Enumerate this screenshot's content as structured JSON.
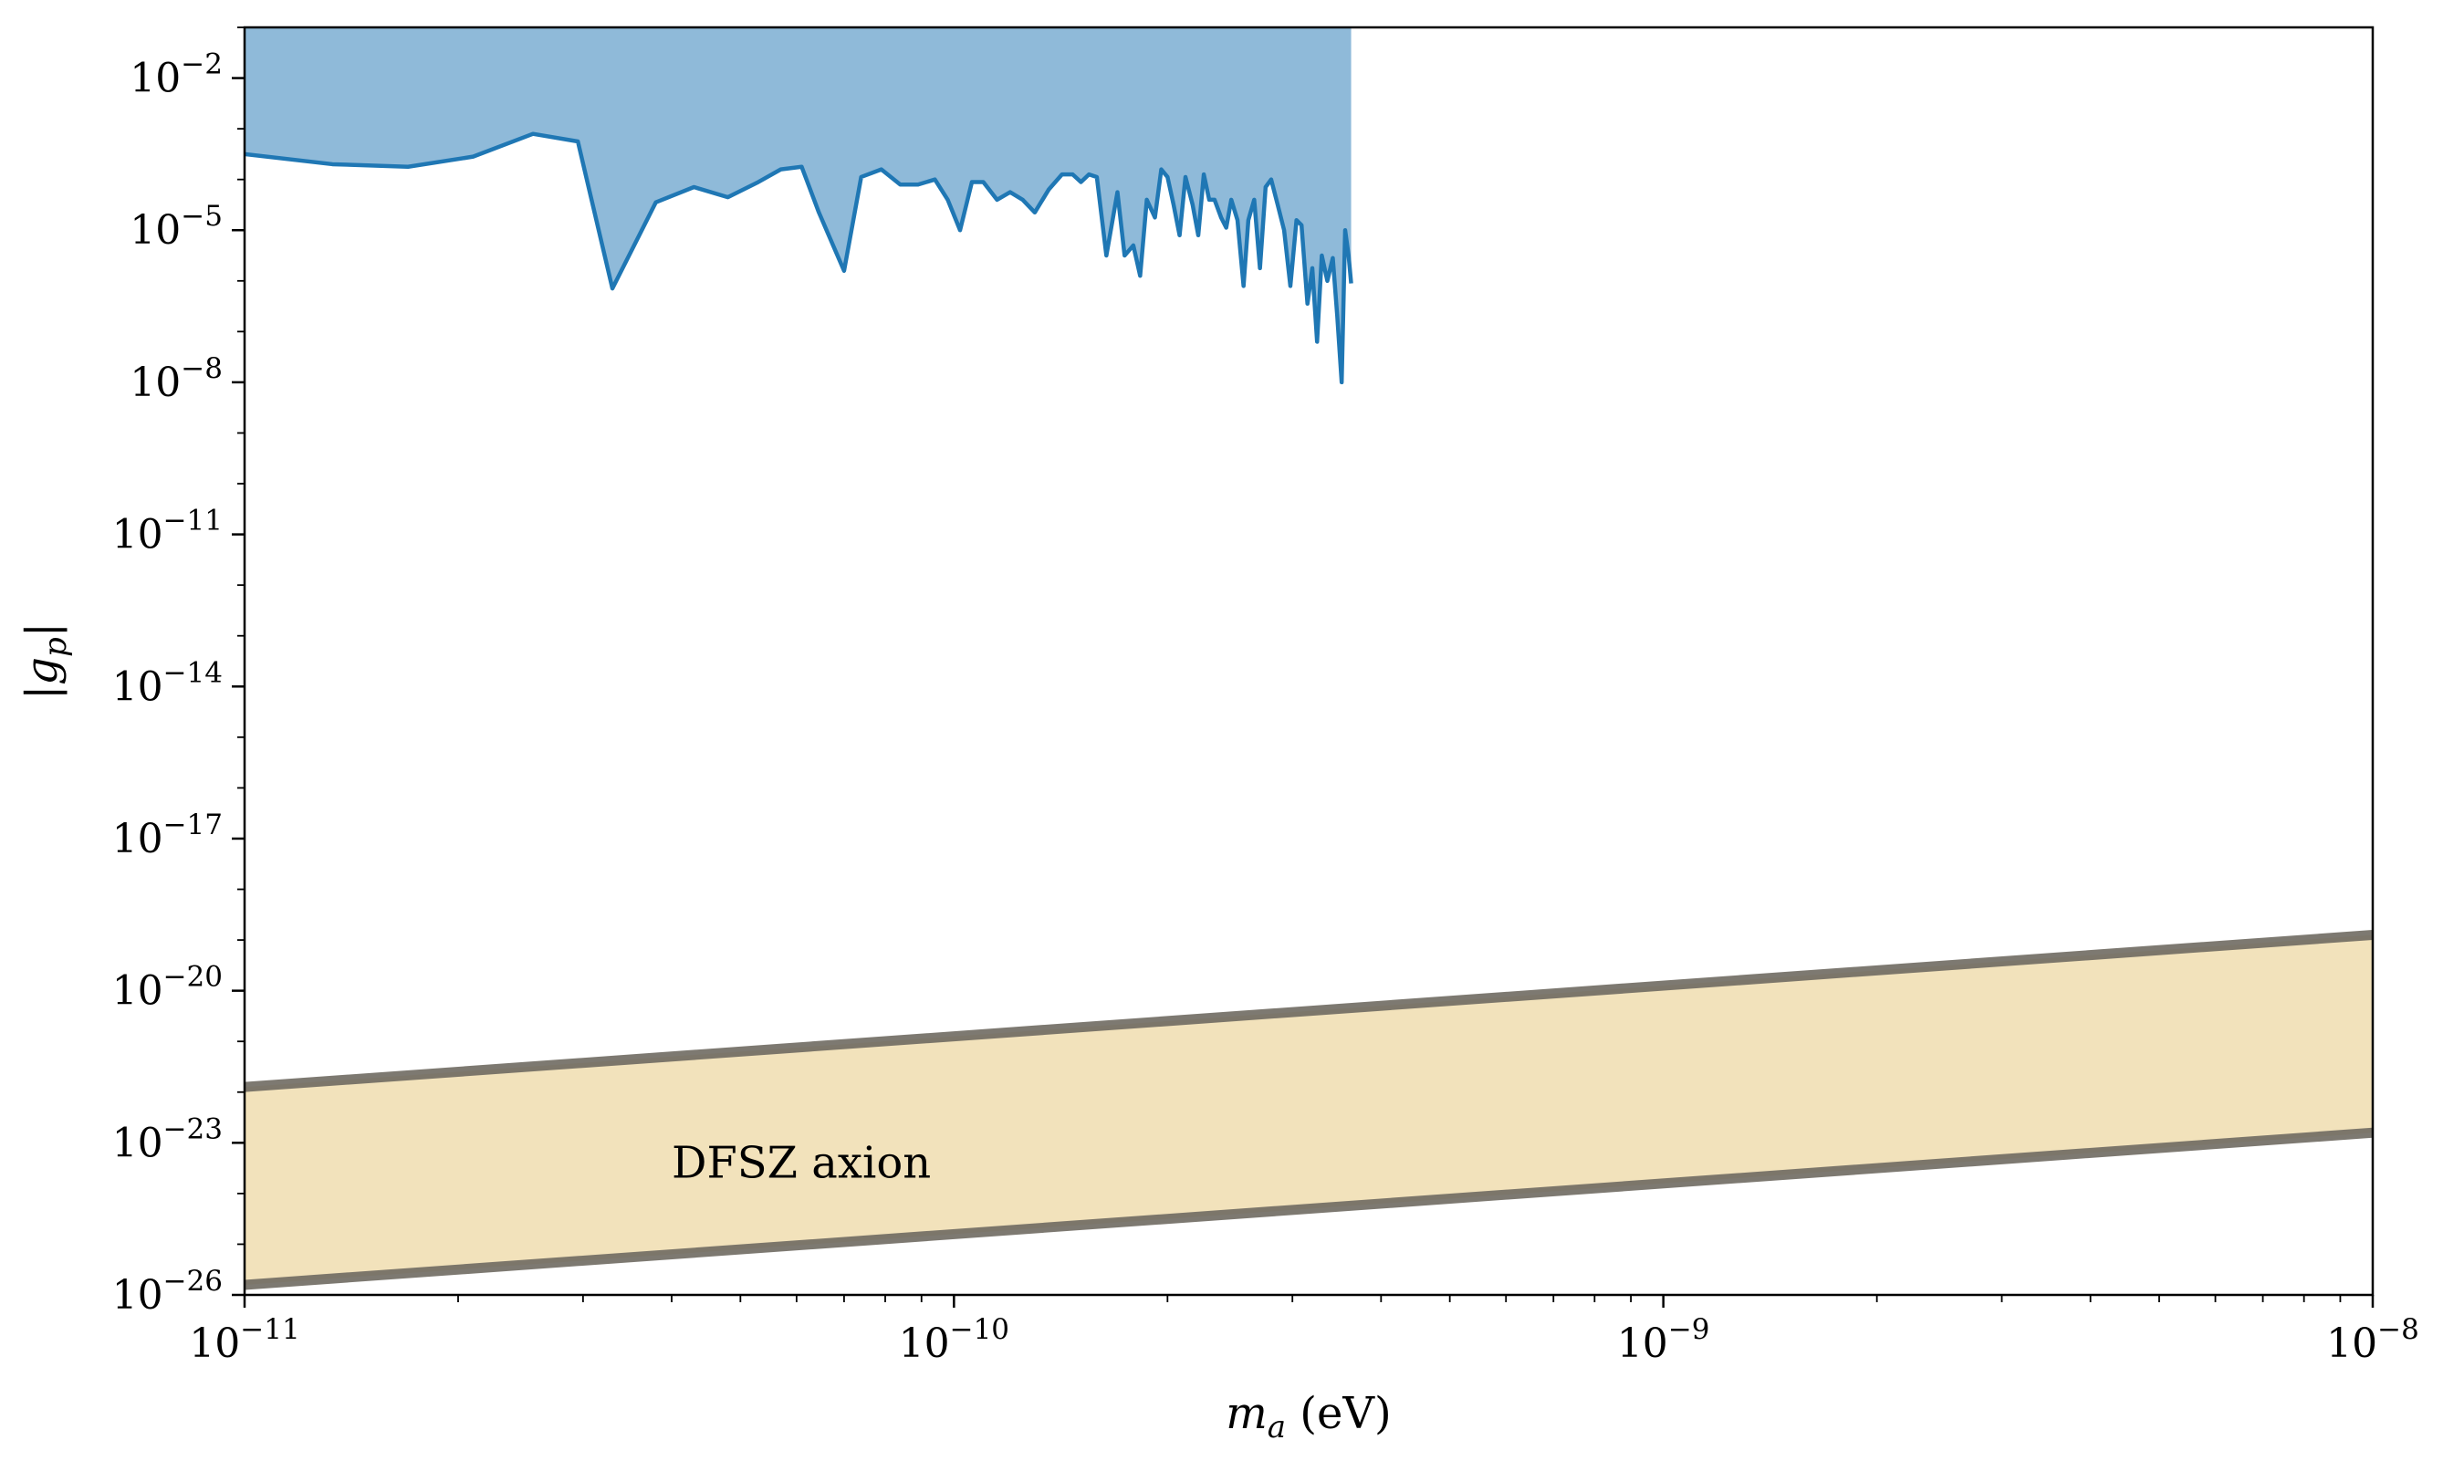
{
  "chart_data": {
    "type": "area",
    "xlabel": {
      "main": "m",
      "sub": "a",
      "tail": " (eV)"
    },
    "ylabel": {
      "main": "|g",
      "sub": "p",
      "tail": "|"
    },
    "x_scale": "log",
    "y_scale": "log",
    "xlim": [
      1e-11,
      1e-08
    ],
    "ylim": [
      1e-26,
      0.1
    ],
    "grid": false,
    "legend": "none",
    "x_ticks": [
      {
        "value": 1e-11,
        "base": "10",
        "exp": "−11"
      },
      {
        "value": 1e-10,
        "base": "10",
        "exp": "−10"
      },
      {
        "value": 1e-09,
        "base": "10",
        "exp": "−9"
      },
      {
        "value": 1e-08,
        "base": "10",
        "exp": "−8"
      }
    ],
    "y_ticks": [
      {
        "value": 0.01,
        "base": "10",
        "exp": "−2"
      },
      {
        "value": 1e-05,
        "base": "10",
        "exp": "−5"
      },
      {
        "value": 1e-08,
        "base": "10",
        "exp": "−8"
      },
      {
        "value": 1e-11,
        "base": "10",
        "exp": "−11"
      },
      {
        "value": 1e-14,
        "base": "10",
        "exp": "−14"
      },
      {
        "value": 1e-17,
        "base": "10",
        "exp": "−17"
      },
      {
        "value": 1e-20,
        "base": "10",
        "exp": "−20"
      },
      {
        "value": 1e-23,
        "base": "10",
        "exp": "−23"
      },
      {
        "value": 1e-26,
        "base": "10",
        "exp": "−26"
      }
    ],
    "annotations": [
      {
        "text": "DFSZ axion",
        "x": 4e-11,
        "y": 1e-23
      }
    ],
    "colors": {
      "limit_line": "#1f77b4",
      "limit_fill": "#8fbad9",
      "band_fill": "#f2e2bb",
      "band_edge": "#6f6a62"
    },
    "series": [
      {
        "kind": "exclusion",
        "fill_to": 0.1,
        "points": [
          [
            1e-11,
            0.000316
          ],
          [
            1.33e-11,
            0.0002
          ],
          [
            1.7e-11,
            0.000178
          ],
          [
            2.1e-11,
            0.000282
          ],
          [
            2.55e-11,
            0.000794
          ],
          [
            2.95e-11,
            0.000562
          ],
          [
            3.3e-11,
            7.08e-07
          ],
          [
            3.8e-11,
            3.55e-05
          ],
          [
            4.3e-11,
            7.08e-05
          ],
          [
            4.8e-11,
            4.47e-05
          ],
          [
            5.3e-11,
            8.91e-05
          ],
          [
            5.7e-11,
            0.000158
          ],
          [
            6.1e-11,
            0.000178
          ],
          [
            6.45e-11,
            2.24e-05
          ],
          [
            7e-11,
            1.58e-06
          ],
          [
            7.4e-11,
            0.000112
          ],
          [
            7.9e-11,
            0.000158
          ],
          [
            8.4e-11,
            7.94e-05
          ],
          [
            8.9e-11,
            7.94e-05
          ],
          [
            9.4e-11,
            0.0001
          ],
          [
            9.8e-11,
            3.98e-05
          ],
          [
            1.02e-10,
            1e-05
          ],
          [
            1.06e-10,
            8.91e-05
          ],
          [
            1.1e-10,
            8.91e-05
          ],
          [
            1.15e-10,
            3.98e-05
          ],
          [
            1.2e-10,
            5.62e-05
          ],
          [
            1.25e-10,
            3.98e-05
          ],
          [
            1.3e-10,
            2.24e-05
          ],
          [
            1.36e-10,
            6.31e-05
          ],
          [
            1.42e-10,
            0.000126
          ],
          [
            1.47e-10,
            0.000126
          ],
          [
            1.51e-10,
            8.91e-05
          ],
          [
            1.55e-10,
            0.000126
          ],
          [
            1.59e-10,
            0.000112
          ],
          [
            1.64e-10,
            3.16e-06
          ],
          [
            1.7e-10,
            5.62e-05
          ],
          [
            1.74e-10,
            3.16e-06
          ],
          [
            1.79e-10,
            5.01e-06
          ],
          [
            1.83e-10,
            1.26e-06
          ],
          [
            1.87e-10,
            3.98e-05
          ],
          [
            1.92e-10,
            1.78e-05
          ],
          [
            1.96e-10,
            0.000158
          ],
          [
            2e-10,
            0.000112
          ],
          [
            2.04e-10,
            3.16e-05
          ],
          [
            2.08e-10,
            7.94e-06
          ],
          [
            2.12e-10,
            0.000112
          ],
          [
            2.17e-10,
            3.16e-05
          ],
          [
            2.21e-10,
            7.94e-06
          ],
          [
            2.25e-10,
            0.000126
          ],
          [
            2.29e-10,
            3.98e-05
          ],
          [
            2.33e-10,
            3.98e-05
          ],
          [
            2.38e-10,
            1.78e-05
          ],
          [
            2.42e-10,
            1.12e-05
          ],
          [
            2.46e-10,
            3.98e-05
          ],
          [
            2.51e-10,
            1.58e-05
          ],
          [
            2.56e-10,
            7.94e-07
          ],
          [
            2.6e-10,
            1.58e-05
          ],
          [
            2.65e-10,
            3.98e-05
          ],
          [
            2.7e-10,
            1.78e-06
          ],
          [
            2.75e-10,
            7.08e-05
          ],
          [
            2.8e-10,
            0.0001
          ],
          [
            2.86e-10,
            3.16e-05
          ],
          [
            2.92e-10,
            1e-05
          ],
          [
            2.98e-10,
            7.94e-07
          ],
          [
            3.04e-10,
            1.58e-05
          ],
          [
            3.09e-10,
            1.26e-05
          ],
          [
            3.15e-10,
            3.55e-07
          ],
          [
            3.2e-10,
            1.78e-06
          ],
          [
            3.25e-10,
            6.31e-08
          ],
          [
            3.3e-10,
            3.16e-06
          ],
          [
            3.36e-10,
            1e-06
          ],
          [
            3.42e-10,
            2.82e-06
          ],
          [
            3.47e-10,
            2e-07
          ],
          [
            3.52e-10,
            1e-08
          ],
          [
            3.56e-10,
            1e-05
          ],
          [
            3.6e-10,
            3.16e-06
          ],
          [
            3.63e-10,
            8.91e-07
          ]
        ]
      },
      {
        "kind": "band",
        "lower_start": [
          1e-11,
          1.58e-26
        ],
        "lower_end": [
          1e-08,
          1.58e-23
        ],
        "upper_start": [
          1e-11,
          1.26e-22
        ],
        "upper_end": [
          1e-08,
          1.26e-19
        ]
      }
    ]
  }
}
